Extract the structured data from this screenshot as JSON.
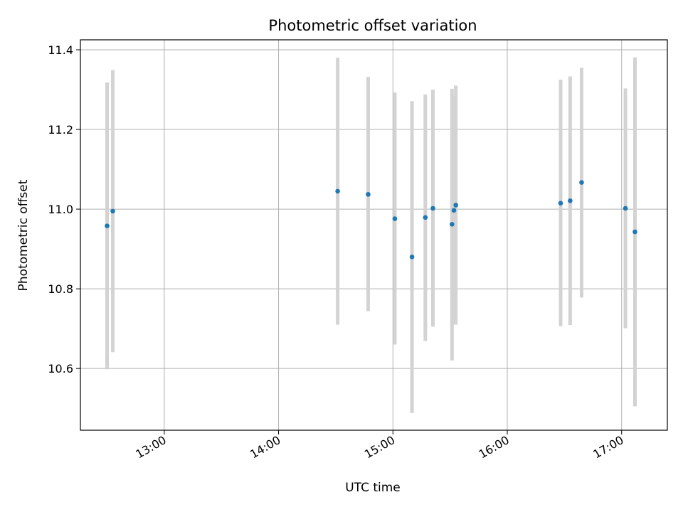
{
  "chart_data": {
    "type": "scatter",
    "title": "Photometric offset variation",
    "xlabel": "UTC time",
    "ylabel": "Photometric offset",
    "xlim": [
      "12:16",
      "17:24"
    ],
    "ylim": [
      10.445,
      11.425
    ],
    "x_ticks": [
      "13:00",
      "14:00",
      "15:00",
      "16:00",
      "17:00"
    ],
    "y_ticks": [
      10.6,
      10.8,
      11.0,
      11.2,
      11.4
    ],
    "grid": true,
    "colors": {
      "points": "#1f77b4",
      "error_bars": "#d3d3d3",
      "grid": "#b0b0b0"
    },
    "points": [
      {
        "x": "12:30",
        "y": 10.958,
        "ylow": 10.598,
        "yhigh": 11.318
      },
      {
        "x": "12:33",
        "y": 10.995,
        "ylow": 10.641,
        "yhigh": 11.349
      },
      {
        "x": "14:31",
        "y": 11.045,
        "ylow": 10.71,
        "yhigh": 11.38
      },
      {
        "x": "14:47",
        "y": 11.037,
        "ylow": 10.744,
        "yhigh": 11.332
      },
      {
        "x": "15:01",
        "y": 10.976,
        "ylow": 10.66,
        "yhigh": 11.293
      },
      {
        "x": "15:10",
        "y": 10.88,
        "ylow": 10.488,
        "yhigh": 11.271
      },
      {
        "x": "15:17",
        "y": 10.979,
        "ylow": 10.669,
        "yhigh": 11.288
      },
      {
        "x": "15:21",
        "y": 11.002,
        "ylow": 10.705,
        "yhigh": 11.3
      },
      {
        "x": "15:31",
        "y": 10.962,
        "ylow": 10.62,
        "yhigh": 11.302
      },
      {
        "x": "15:32",
        "y": 10.997,
        "ylow": 10.71,
        "yhigh": 11.285
      },
      {
        "x": "15:33",
        "y": 11.01,
        "ylow": 10.71,
        "yhigh": 11.31
      },
      {
        "x": "16:28",
        "y": 11.015,
        "ylow": 10.706,
        "yhigh": 11.325
      },
      {
        "x": "16:33",
        "y": 11.021,
        "ylow": 10.709,
        "yhigh": 11.333
      },
      {
        "x": "16:39",
        "y": 11.067,
        "ylow": 10.778,
        "yhigh": 11.355
      },
      {
        "x": "17:02",
        "y": 11.002,
        "ylow": 10.701,
        "yhigh": 11.303
      },
      {
        "x": "17:07",
        "y": 10.943,
        "ylow": 10.505,
        "yhigh": 11.381
      }
    ]
  }
}
